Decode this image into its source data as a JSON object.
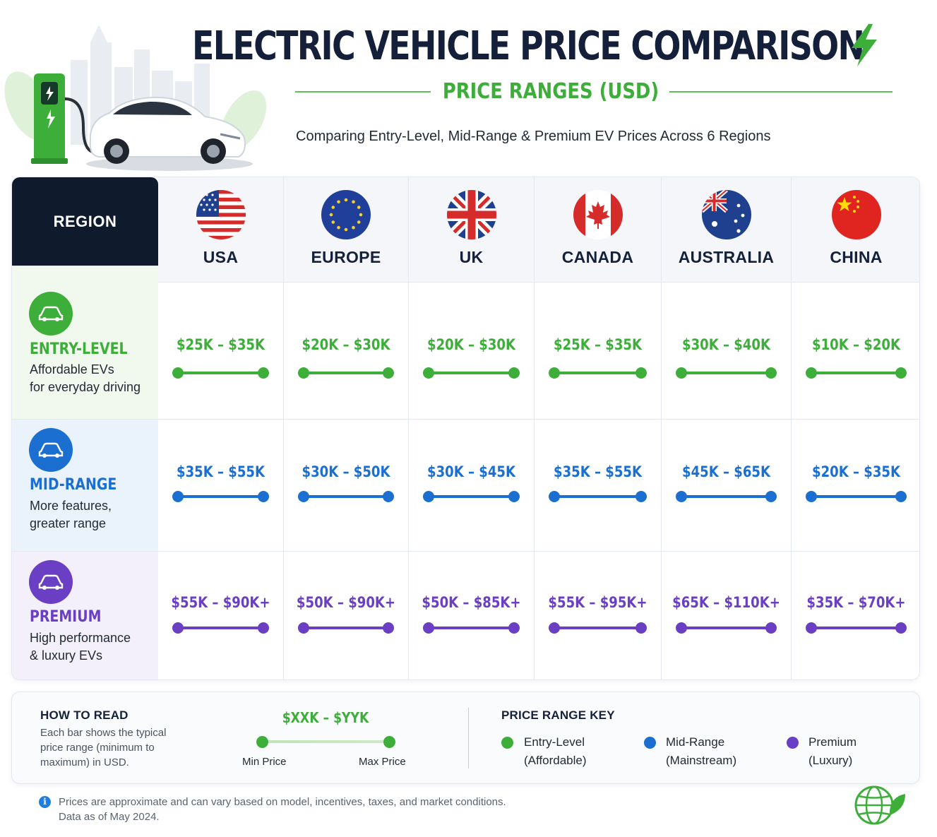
{
  "header": {
    "title": "ELECTRIC VEHICLE PRICE COMPARISON",
    "subtitle": "PRICE RANGES (USD)",
    "description": "Comparing Entry-Level, Mid-Range & Premium EV Prices Across 6 Regions"
  },
  "table": {
    "region_label": "REGION",
    "regions": [
      "USA",
      "EUROPE",
      "UK",
      "CANADA",
      "AUSTRALIA",
      "CHINA"
    ],
    "tiers": [
      {
        "name": "ENTRY-LEVEL",
        "desc1": "Affordable EVs",
        "desc2": "for everyday driving",
        "color": "#3dae3a",
        "bg": "#f1f9ef",
        "icon": "car-icon",
        "prices": [
          "$25K – $35K",
          "$20K – $30K",
          "$20K – $30K",
          "$25K – $35K",
          "$30K – $40K",
          "$10K – $20K"
        ]
      },
      {
        "name": "MID-RANGE",
        "desc1": "More features,",
        "desc2": "greater range",
        "color": "#1a6fd1",
        "bg": "#eaf3fc",
        "icon": "car-icon",
        "prices": [
          "$35K – $55K",
          "$30K – $50K",
          "$30K – $45K",
          "$35K – $55K",
          "$45K – $65K",
          "$20K – $35K"
        ]
      },
      {
        "name": "PREMIUM",
        "desc1": "High performance",
        "desc2": "& luxury EVs",
        "color": "#6a3fc4",
        "bg": "#f3effb",
        "icon": "car-icon",
        "prices": [
          "$55K – $90K+",
          "$50K – $90K+",
          "$50K – $85K+",
          "$55K – $95K+",
          "$65K – $110K+",
          "$35K – $70K+"
        ]
      }
    ]
  },
  "legend": {
    "how_title": "HOW TO READ",
    "how_line1": "Each bar shows the typical",
    "how_line2": "price range (minimum to",
    "how_line3": "maximum) in USD.",
    "sample_price": "$XXK – $YYK",
    "min_label": "Min Price",
    "max_label": "Max Price",
    "key_title": "PRICE RANGE KEY",
    "keys": [
      {
        "name": "Entry-Level",
        "sub": "(Affordable)",
        "color": "#3dae3a"
      },
      {
        "name": "Mid-Range",
        "sub": "(Mainstream)",
        "color": "#1a6fd1"
      },
      {
        "name": "Premium",
        "sub": "(Luxury)",
        "color": "#6a3fc4"
      }
    ]
  },
  "footnote": {
    "line1": "Prices are approximate and can vary based on model, incentives, taxes, and market conditions.",
    "line2": "Data as of May 2024."
  }
}
